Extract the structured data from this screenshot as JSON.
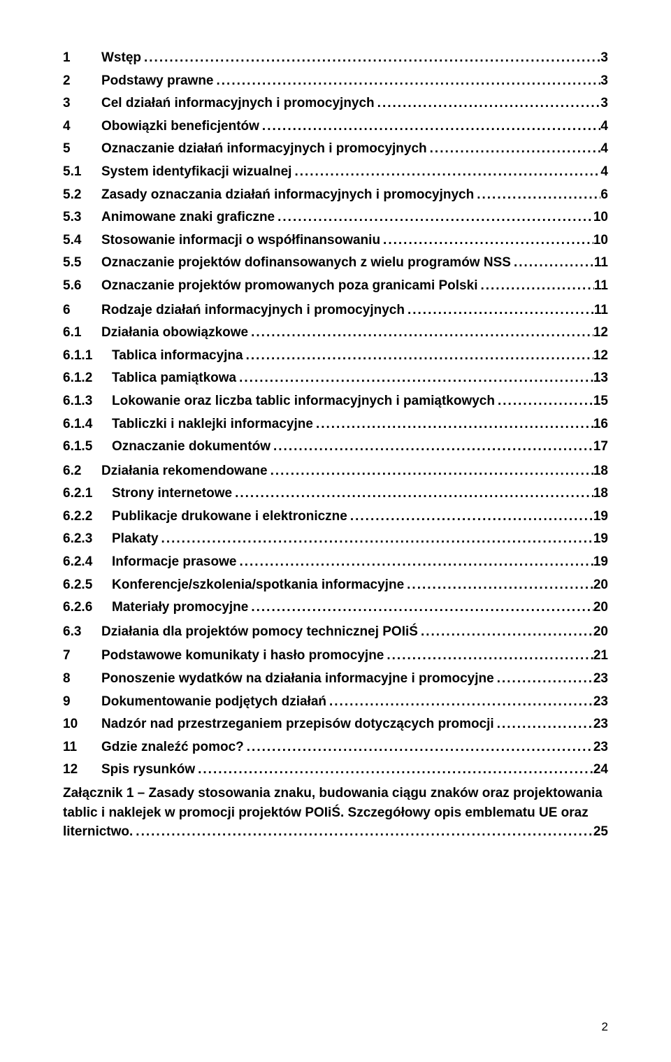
{
  "font": {
    "family": "Arial",
    "weight": "bold",
    "size_pt": 14
  },
  "colors": {
    "text": "#000000",
    "background": "#ffffff",
    "leader": "#000000"
  },
  "page_number": "2",
  "entries": [
    {
      "level": 1,
      "num": "1",
      "title": "Wstęp",
      "page": "3"
    },
    {
      "level": 1,
      "num": "2",
      "title": "Podstawy prawne",
      "page": "3"
    },
    {
      "level": 1,
      "num": "3",
      "title": "Cel działań informacyjnych i promocyjnych",
      "page": "3"
    },
    {
      "level": 1,
      "num": "4",
      "title": "Obowiązki beneficjentów",
      "page": "4"
    },
    {
      "level": 1,
      "num": "5",
      "title": "Oznaczanie działań informacyjnych i promocyjnych",
      "page": "4"
    },
    {
      "level": 2,
      "num": "5.1",
      "title": "System identyfikacji wizualnej",
      "page": "4"
    },
    {
      "level": 2,
      "num": "5.2",
      "title": "Zasady oznaczania działań informacyjnych i promocyjnych",
      "page": "6"
    },
    {
      "level": 2,
      "num": "5.3",
      "title": "Animowane znaki graficzne",
      "page": "10"
    },
    {
      "level": 2,
      "num": "5.4",
      "title": "Stosowanie informacji o współfinansowaniu",
      "page": "10"
    },
    {
      "level": 2,
      "num": "5.5",
      "title": "Oznaczanie projektów dofinansowanych z wielu programów NSS",
      "page": "11"
    },
    {
      "level": 2,
      "num": "5.6",
      "title": "Oznaczanie projektów promowanych poza granicami Polski",
      "page": "11"
    },
    {
      "level": 1,
      "num": "6",
      "title": "Rodzaje działań informacyjnych i promocyjnych",
      "page": "11"
    },
    {
      "level": 2,
      "num": "6.1",
      "title": "Działania obowiązkowe",
      "page": "12"
    },
    {
      "level": 3,
      "num": "6.1.1",
      "title": "Tablica informacyjna",
      "page": "12"
    },
    {
      "level": 3,
      "num": "6.1.2",
      "title": "Tablica pamiątkowa",
      "page": "13"
    },
    {
      "level": 3,
      "num": "6.1.3",
      "title": "Lokowanie oraz liczba tablic informacyjnych i pamiątkowych",
      "page": "15"
    },
    {
      "level": 3,
      "num": "6.1.4",
      "title": "Tabliczki i naklejki informacyjne",
      "page": "16"
    },
    {
      "level": 3,
      "num": "6.1.5",
      "title": "Oznaczanie dokumentów",
      "page": "17"
    },
    {
      "level": 2,
      "num": "6.2",
      "title": "Działania rekomendowane",
      "page": "18"
    },
    {
      "level": 3,
      "num": "6.2.1",
      "title": "Strony internetowe",
      "page": "18"
    },
    {
      "level": 3,
      "num": "6.2.2",
      "title": "Publikacje drukowane i elektroniczne",
      "page": "19"
    },
    {
      "level": 3,
      "num": "6.2.3",
      "title": "Plakaty",
      "page": "19"
    },
    {
      "level": 3,
      "num": "6.2.4",
      "title": "Informacje prasowe",
      "page": "19"
    },
    {
      "level": 3,
      "num": "6.2.5",
      "title": "Konferencje/szkolenia/spotkania informacyjne",
      "page": "20"
    },
    {
      "level": 3,
      "num": "6.2.6",
      "title": "Materiały promocyjne",
      "page": "20"
    },
    {
      "level": 2,
      "num": "6.3",
      "title": "Działania dla projektów pomocy technicznej POIiŚ",
      "page": "20"
    },
    {
      "level": 1,
      "num": "7",
      "title": "Podstawowe komunikaty i hasło promocyjne",
      "page": "21"
    },
    {
      "level": 1,
      "num": "8",
      "title": "Ponoszenie wydatków na działania informacyjne i promocyjne",
      "page": "23"
    },
    {
      "level": 1,
      "num": "9",
      "title": "Dokumentowanie podjętych działań",
      "page": "23"
    },
    {
      "level": 1,
      "num": "10",
      "title": "Nadzór nad przestrzeganiem przepisów dotyczących promocji",
      "page": "23"
    },
    {
      "level": 1,
      "num": "11",
      "title": "Gdzie znaleźć pomoc?",
      "page": "23"
    },
    {
      "level": 1,
      "num": "12",
      "title": "Spis rysunków",
      "page": "24"
    }
  ],
  "appendix": {
    "text_lines": [
      "Załącznik 1 – Zasady stosowania znaku, budowania ciągu znaków oraz projektowania",
      "tablic i naklejek w promocji projektów POIiŚ. Szczegółowy opis emblematu UE oraz"
    ],
    "last_line_text": "liternictwo.",
    "page": "25"
  }
}
